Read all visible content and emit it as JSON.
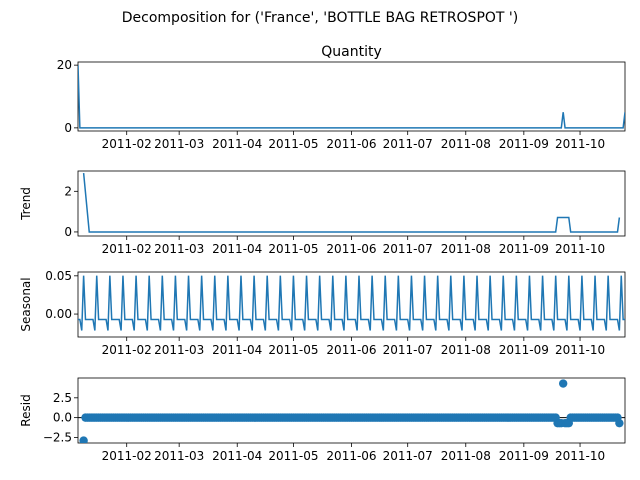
{
  "figure": {
    "suptitle": "Decomposition for ('France', 'BOTTLE BAG RETROSPOT ')"
  },
  "chart_data": [
    {
      "type": "line",
      "panel": "observed",
      "title": "Quantity",
      "ylabel": "",
      "x_start": "2011-01-06",
      "x_end": "2011-10-25",
      "xlim": [
        "2011-01-06",
        "2011-10-25"
      ],
      "ylim": [
        -1,
        21
      ],
      "yticks": [
        0,
        20
      ],
      "ytick_labels": [
        "0",
        "20"
      ],
      "xticks": [
        "2011-02-01",
        "2011-03-01",
        "2011-04-01",
        "2011-05-01",
        "2011-06-01",
        "2011-07-01",
        "2011-08-01",
        "2011-09-01",
        "2011-10-01"
      ],
      "xtick_labels": [
        "2011-02",
        "2011-03",
        "2011-04",
        "2011-05",
        "2011-06",
        "2011-07",
        "2011-08",
        "2011-09",
        "2011-10"
      ],
      "color": "#1f77b4",
      "points": [
        [
          "2011-01-06",
          20
        ],
        [
          "2011-01-07",
          0
        ],
        [
          "2011-09-21",
          0
        ],
        [
          "2011-09-22",
          5
        ],
        [
          "2011-09-23",
          0
        ],
        [
          "2011-10-24",
          0
        ],
        [
          "2011-10-25",
          5
        ]
      ]
    },
    {
      "type": "line",
      "panel": "trend",
      "title": "",
      "ylabel": "Trend",
      "x_start": "2011-01-06",
      "x_end": "2011-10-25",
      "xlim": [
        "2011-01-06",
        "2011-10-25"
      ],
      "ylim": [
        -0.2,
        3.0
      ],
      "yticks": [
        0,
        2
      ],
      "ytick_labels": [
        "0",
        "2"
      ],
      "xticks": [
        "2011-02-01",
        "2011-03-01",
        "2011-04-01",
        "2011-05-01",
        "2011-06-01",
        "2011-07-01",
        "2011-08-01",
        "2011-09-01",
        "2011-10-01"
      ],
      "xtick_labels": [
        "2011-02",
        "2011-03",
        "2011-04",
        "2011-05",
        "2011-06",
        "2011-07",
        "2011-08",
        "2011-09",
        "2011-10"
      ],
      "color": "#1f77b4",
      "points": [
        [
          "2011-01-09",
          2.9
        ],
        [
          "2011-01-12",
          0
        ],
        [
          "2011-09-18",
          0
        ],
        [
          "2011-09-19",
          0.71
        ],
        [
          "2011-09-25",
          0.71
        ],
        [
          "2011-09-26",
          0
        ],
        [
          "2011-10-21",
          0
        ],
        [
          "2011-10-22",
          0.71
        ]
      ]
    },
    {
      "type": "line",
      "panel": "seasonal",
      "title": "",
      "ylabel": "Seasonal",
      "x_start": "2011-01-06",
      "x_end": "2011-10-25",
      "xlim": [
        "2011-01-06",
        "2011-10-25"
      ],
      "ylim": [
        -0.03,
        0.055
      ],
      "yticks": [
        0.05,
        0
      ],
      "ytick_labels": [
        "0.05",
        "0.00"
      ],
      "xticks": [
        "2011-02-01",
        "2011-03-01",
        "2011-04-01",
        "2011-05-01",
        "2011-06-01",
        "2011-07-01",
        "2011-08-01",
        "2011-09-01",
        "2011-10-01"
      ],
      "xtick_labels": [
        "2011-02",
        "2011-03",
        "2011-04",
        "2011-05",
        "2011-06",
        "2011-07",
        "2011-08",
        "2011-09",
        "2011-10"
      ],
      "color": "#1f77b4",
      "period_days": 7,
      "first_peak": "2011-01-09",
      "weekly_pattern": [
        0.0502,
        -0.0072,
        -0.0072,
        -0.0072,
        -0.0072,
        -0.0072,
        -0.0215
      ]
    },
    {
      "type": "scatter",
      "panel": "resid",
      "title": "",
      "ylabel": "Resid",
      "x_start": "2011-01-06",
      "x_end": "2011-10-25",
      "xlim": [
        "2011-01-06",
        "2011-10-25"
      ],
      "ylim": [
        -3.2,
        5.0
      ],
      "yticks": [
        2.5,
        0,
        -2.5
      ],
      "ytick_labels": [
        "2.5",
        "0.0",
        "−2.5"
      ],
      "xticks": [
        "2011-02-01",
        "2011-03-01",
        "2011-04-01",
        "2011-05-01",
        "2011-06-01",
        "2011-07-01",
        "2011-08-01",
        "2011-09-01",
        "2011-10-01"
      ],
      "xtick_labels": [
        "2011-02",
        "2011-03",
        "2011-04",
        "2011-05",
        "2011-06",
        "2011-07",
        "2011-08",
        "2011-09",
        "2011-10"
      ],
      "color": "#1f77b4",
      "baseline": 0,
      "points_start": "2011-01-09",
      "points_end": "2011-10-22",
      "outliers": [
        [
          "2011-01-09",
          -2.9
        ],
        [
          "2011-09-19",
          -0.7
        ],
        [
          "2011-09-20",
          -0.7
        ],
        [
          "2011-09-21",
          -0.7
        ],
        [
          "2011-09-22",
          4.3
        ],
        [
          "2011-09-23",
          -0.7
        ],
        [
          "2011-09-24",
          -0.7
        ],
        [
          "2011-09-25",
          -0.7
        ],
        [
          "2011-10-22",
          -0.7
        ]
      ]
    }
  ]
}
